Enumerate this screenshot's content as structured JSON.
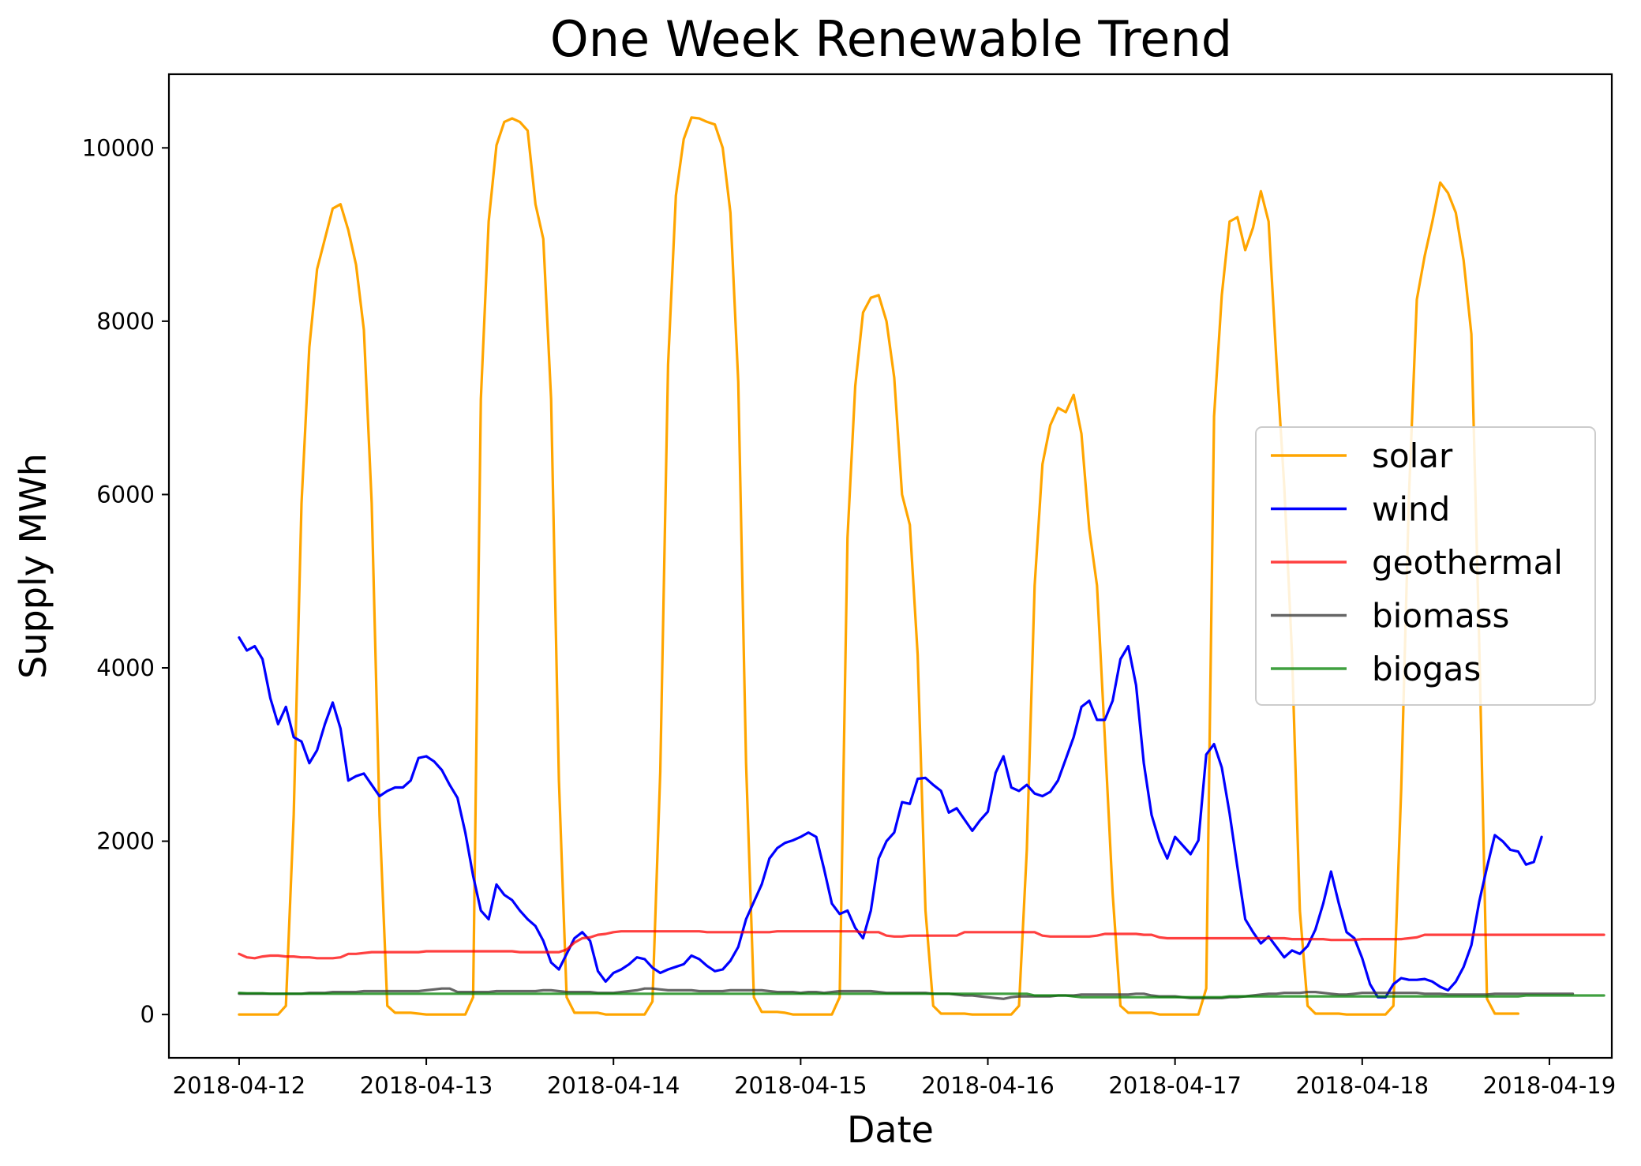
{
  "chart_data": {
    "type": "line",
    "title": "One Week Renewable Trend",
    "xlabel": "Date",
    "ylabel": "Supply MWh",
    "x_unit": "hour",
    "x_start": "2018-04-12 00:00",
    "x_ticks": [
      "2018-04-12",
      "2018-04-13",
      "2018-04-14",
      "2018-04-15",
      "2018-04-16",
      "2018-04-17",
      "2018-04-18",
      "2018-04-19"
    ],
    "y_ticks": [
      0,
      2000,
      4000,
      6000,
      8000,
      10000
    ],
    "xlim": [
      "2018-04-11 15:00",
      "2018-04-19 08:00"
    ],
    "ylim": [
      -500,
      10850
    ],
    "grid": false,
    "legend_position": "center-right",
    "series": [
      {
        "name": "solar",
        "color": "#FFA500",
        "values": [
          0,
          0,
          0,
          0,
          0,
          0,
          100,
          2300,
          5900,
          7700,
          8600,
          8950,
          9300,
          9350,
          9050,
          8650,
          7900,
          5900,
          2300,
          100,
          20,
          20,
          20,
          10,
          0,
          0,
          0,
          0,
          0,
          0,
          200,
          7100,
          9150,
          10030,
          10300,
          10340,
          10300,
          10200,
          9350,
          8950,
          7100,
          2700,
          200,
          20,
          20,
          20,
          20,
          0,
          0,
          0,
          0,
          0,
          0,
          150,
          2800,
          7500,
          9450,
          10100,
          10350,
          10340,
          10300,
          10270,
          10000,
          9250,
          7300,
          2900,
          200,
          30,
          30,
          30,
          20,
          0,
          0,
          0,
          0,
          0,
          0,
          200,
          5500,
          7250,
          8100,
          8270,
          8300,
          8000,
          7350,
          6000,
          5650,
          4150,
          1200,
          100,
          10,
          10,
          10,
          10,
          0,
          0,
          0,
          0,
          0,
          0,
          100,
          1900,
          4950,
          6350,
          6800,
          7000,
          6950,
          7150,
          6700,
          5600,
          4950,
          3200,
          1400,
          100,
          20,
          20,
          20,
          20,
          0,
          0,
          0,
          0,
          0,
          0,
          300,
          6900,
          8300,
          9150,
          9200,
          8820,
          9080,
          9500,
          9150,
          7550,
          6100,
          4150,
          1200,
          100,
          10,
          10,
          10,
          10,
          0,
          0,
          0,
          0,
          0,
          0,
          100,
          2600,
          6000,
          8250,
          8750,
          9150,
          9600,
          9480,
          9250,
          8700,
          7850,
          4300,
          180,
          10,
          10,
          10,
          10
        ]
      },
      {
        "name": "wind",
        "color": "#0000FF",
        "values": [
          4350,
          4200,
          4250,
          4100,
          3650,
          3350,
          3550,
          3200,
          3150,
          2900,
          3050,
          3350,
          3600,
          3300,
          2700,
          2750,
          2780,
          2650,
          2520,
          2580,
          2620,
          2620,
          2700,
          2960,
          2980,
          2920,
          2820,
          2650,
          2500,
          2100,
          1600,
          1200,
          1100,
          1500,
          1380,
          1320,
          1200,
          1100,
          1020,
          850,
          600,
          520,
          700,
          880,
          950,
          850,
          500,
          380,
          480,
          520,
          580,
          660,
          640,
          540,
          480,
          520,
          550,
          580,
          680,
          640,
          560,
          500,
          520,
          620,
          780,
          1100,
          1300,
          1500,
          1800,
          1920,
          1980,
          2010,
          2050,
          2100,
          2050,
          1680,
          1280,
          1160,
          1200,
          1000,
          880,
          1200,
          1800,
          2000,
          2100,
          2450,
          2430,
          2720,
          2730,
          2650,
          2580,
          2330,
          2380,
          2250,
          2120,
          2240,
          2340,
          2790,
          2980,
          2620,
          2580,
          2650,
          2550,
          2520,
          2570,
          2700,
          2950,
          3200,
          3550,
          3620,
          3400,
          3400,
          3620,
          4100,
          4250,
          3800,
          2900,
          2300,
          2000,
          1800,
          2050,
          1950,
          1850,
          2010,
          3000,
          3120,
          2850,
          2320,
          1700,
          1100,
          950,
          820,
          900,
          780,
          660,
          740,
          700,
          790,
          980,
          1280,
          1650,
          1280,
          950,
          880,
          650,
          350,
          200,
          200,
          350,
          420,
          400,
          400,
          410,
          380,
          320,
          280,
          380,
          550,
          800,
          1300,
          1700,
          2070,
          2000,
          1900,
          1880,
          1730,
          1760,
          2050
        ]
      },
      {
        "name": "geothermal",
        "color": "#FF0000",
        "values": [
          700,
          660,
          650,
          670,
          680,
          680,
          670,
          670,
          660,
          660,
          650,
          650,
          650,
          660,
          700,
          700,
          710,
          720,
          720,
          720,
          720,
          720,
          720,
          720,
          730,
          730,
          730,
          730,
          730,
          730,
          730,
          730,
          730,
          730,
          730,
          730,
          720,
          720,
          720,
          720,
          720,
          720,
          750,
          830,
          880,
          890,
          920,
          930,
          950,
          960,
          960,
          960,
          960,
          960,
          960,
          960,
          960,
          960,
          960,
          960,
          950,
          950,
          950,
          950,
          950,
          950,
          950,
          950,
          950,
          960,
          960,
          960,
          960,
          960,
          960,
          960,
          960,
          960,
          960,
          960,
          950,
          950,
          950,
          910,
          900,
          900,
          910,
          910,
          910,
          910,
          910,
          910,
          910,
          950,
          950,
          950,
          950,
          950,
          950,
          950,
          950,
          950,
          950,
          910,
          900,
          900,
          900,
          900,
          900,
          900,
          910,
          930,
          930,
          930,
          930,
          930,
          920,
          920,
          890,
          880,
          880,
          880,
          880,
          880,
          880,
          880,
          880,
          880,
          880,
          880,
          880,
          880,
          880,
          880,
          880,
          870,
          870,
          870,
          870,
          870,
          860,
          860,
          860,
          860,
          870,
          870,
          870,
          870,
          870,
          870,
          880,
          890,
          920,
          920,
          920,
          920,
          920,
          920,
          920,
          920,
          920,
          920,
          920,
          920,
          920,
          920,
          920,
          920,
          920,
          920,
          920,
          920,
          920,
          920,
          920,
          920
        ]
      },
      {
        "name": "biomass",
        "color": "#333333",
        "values": [
          240,
          240,
          240,
          240,
          240,
          240,
          240,
          240,
          240,
          250,
          250,
          250,
          260,
          260,
          260,
          260,
          270,
          270,
          270,
          270,
          270,
          270,
          270,
          270,
          280,
          290,
          300,
          300,
          260,
          260,
          260,
          260,
          260,
          270,
          270,
          270,
          270,
          270,
          270,
          280,
          280,
          270,
          260,
          260,
          260,
          260,
          250,
          250,
          250,
          260,
          270,
          280,
          300,
          300,
          290,
          280,
          280,
          280,
          280,
          270,
          270,
          270,
          270,
          280,
          280,
          280,
          280,
          280,
          270,
          260,
          260,
          260,
          250,
          260,
          260,
          250,
          260,
          270,
          270,
          270,
          270,
          270,
          260,
          250,
          250,
          250,
          250,
          250,
          250,
          240,
          240,
          240,
          230,
          220,
          220,
          210,
          200,
          190,
          180,
          200,
          210,
          210,
          210,
          210,
          210,
          220,
          220,
          220,
          230,
          230,
          230,
          230,
          230,
          230,
          230,
          240,
          240,
          220,
          210,
          210,
          210,
          200,
          190,
          190,
          190,
          190,
          190,
          200,
          200,
          210,
          220,
          230,
          240,
          240,
          250,
          250,
          250,
          260,
          260,
          250,
          240,
          230,
          230,
          240,
          250,
          250,
          250,
          250,
          250,
          250,
          250,
          250,
          240,
          240,
          240,
          230,
          230,
          230,
          230,
          230,
          230,
          240,
          240,
          240,
          240,
          240,
          240,
          240,
          240,
          240,
          240,
          240
        ]
      },
      {
        "name": "biogas",
        "color": "#008000",
        "values": [
          250,
          245,
          245,
          245,
          240,
          240,
          240,
          240,
          240,
          240,
          240,
          240,
          240,
          240,
          240,
          240,
          240,
          240,
          240,
          240,
          240,
          240,
          240,
          240,
          240,
          240,
          240,
          240,
          240,
          240,
          240,
          240,
          240,
          240,
          240,
          240,
          240,
          240,
          240,
          240,
          240,
          240,
          240,
          240,
          240,
          240,
          240,
          240,
          240,
          240,
          240,
          240,
          240,
          240,
          240,
          240,
          240,
          240,
          240,
          240,
          240,
          240,
          240,
          240,
          240,
          240,
          240,
          240,
          240,
          240,
          240,
          240,
          240,
          240,
          240,
          240,
          240,
          240,
          240,
          240,
          240,
          240,
          240,
          240,
          240,
          240,
          240,
          240,
          240,
          240,
          240,
          240,
          240,
          240,
          240,
          240,
          240,
          240,
          240,
          240,
          240,
          240,
          220,
          220,
          220,
          220,
          220,
          210,
          200,
          200,
          200,
          200,
          200,
          200,
          200,
          200,
          200,
          200,
          200,
          200,
          200,
          200,
          200,
          200,
          200,
          200,
          200,
          210,
          210,
          210,
          210,
          210,
          210,
          210,
          210,
          210,
          210,
          210,
          210,
          210,
          210,
          210,
          210,
          210,
          210,
          210,
          210,
          210,
          210,
          210,
          210,
          210,
          210,
          210,
          210,
          210,
          210,
          210,
          210,
          210,
          210,
          210,
          210,
          210,
          210,
          220,
          220,
          220,
          220,
          220,
          220,
          220,
          220,
          220,
          220,
          220
        ]
      }
    ]
  }
}
